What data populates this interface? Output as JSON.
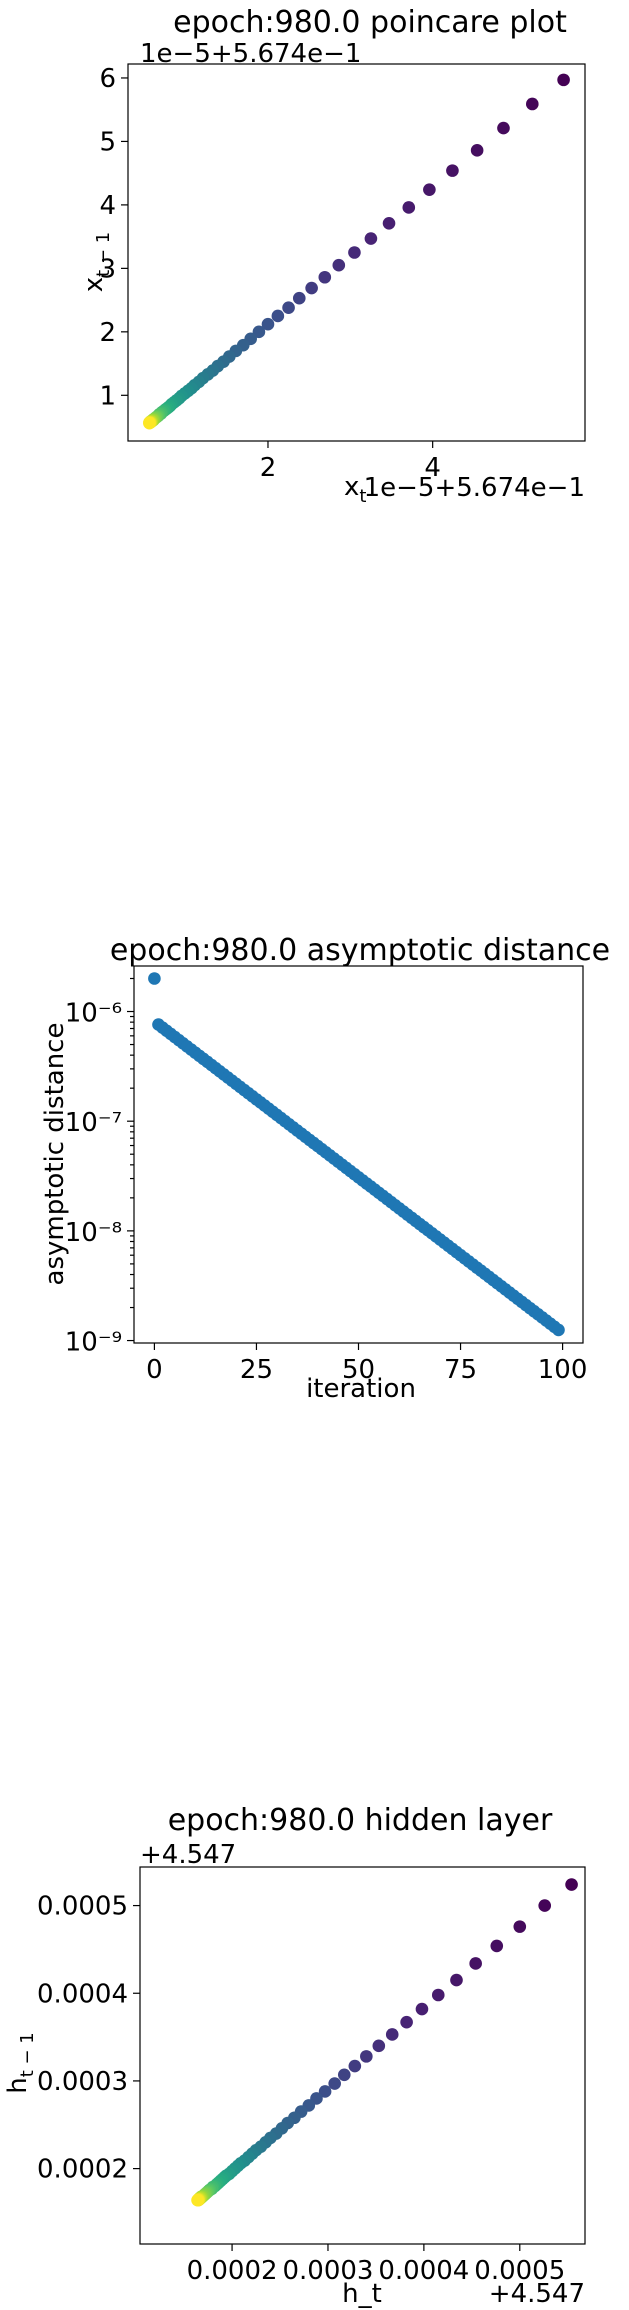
{
  "chart_data": [
    {
      "type": "scatter",
      "title": "epoch:980.0 poincare plot",
      "xlabel": "x_t",
      "ylabel": "x_{t-1}",
      "offset_x": "1e−5+5.674e−1",
      "offset_y": "1e−5+5.674e−1",
      "x_ticks": [
        "2",
        "4"
      ],
      "y_ticks": [
        "1",
        "2",
        "3",
        "4",
        "5",
        "6"
      ],
      "xlim": [
        0.3,
        5.85
      ],
      "ylim": [
        0.28,
        6.22
      ],
      "colormap": "viridis",
      "color_order": "first point dark purple, last point yellow",
      "points": {
        "x": [
          5.59,
          5.21,
          4.86,
          4.54,
          4.24,
          3.96,
          3.71,
          3.47,
          3.25,
          3.05,
          2.86,
          2.69,
          2.53,
          2.38,
          2.25,
          2.12,
          2.0,
          1.89,
          1.79,
          1.7,
          1.61,
          1.53,
          1.46,
          1.39,
          1.33,
          1.27,
          1.21,
          1.16,
          1.11,
          1.07,
          1.03,
          0.99,
          0.95,
          0.92,
          0.89,
          0.86,
          0.83,
          0.81,
          0.79,
          0.77,
          0.75,
          0.73,
          0.71,
          0.7,
          0.68,
          0.67,
          0.66,
          0.65,
          0.64,
          0.63,
          0.62,
          0.61,
          0.61,
          0.6,
          0.59,
          0.59,
          0.58,
          0.58,
          0.57,
          0.57,
          0.57,
          0.56,
          0.56
        ],
        "y": [
          5.97,
          5.59,
          5.21,
          4.86,
          4.54,
          4.24,
          3.96,
          3.71,
          3.47,
          3.25,
          3.05,
          2.86,
          2.69,
          2.53,
          2.38,
          2.25,
          2.12,
          2.0,
          1.89,
          1.79,
          1.7,
          1.61,
          1.53,
          1.46,
          1.39,
          1.33,
          1.27,
          1.21,
          1.16,
          1.11,
          1.07,
          1.03,
          0.99,
          0.95,
          0.92,
          0.89,
          0.86,
          0.83,
          0.81,
          0.79,
          0.77,
          0.75,
          0.73,
          0.71,
          0.7,
          0.68,
          0.67,
          0.66,
          0.65,
          0.64,
          0.63,
          0.62,
          0.61,
          0.61,
          0.6,
          0.59,
          0.59,
          0.58,
          0.58,
          0.57,
          0.57,
          0.57,
          0.56
        ]
      }
    },
    {
      "type": "scatter",
      "title": "epoch:980.0 asymptotic distance",
      "xlabel": "iteration",
      "ylabel": "asymptotic distance",
      "x_ticks": [
        "0",
        "25",
        "50",
        "75",
        "100"
      ],
      "y_ticks": [
        "10⁻⁶",
        "10⁻⁷",
        "10⁻⁸",
        "10⁻⁹"
      ],
      "y_scale": "log",
      "xlim": [
        -5,
        105
      ],
      "ylim": [
        9.5e-10,
        2.6e-06
      ],
      "color": "#1f77b4",
      "points": {
        "x_start": 0,
        "x_end": 99,
        "first_value": 2e-06,
        "second_value": 7.6e-07,
        "last_value": 1.25e-09
      }
    },
    {
      "type": "scatter",
      "title": "epoch:980.0 hidden layer",
      "xlabel": "h_t",
      "ylabel": "h_{t-1}",
      "offset_x": "+4.547",
      "offset_y": "+4.547",
      "x_ticks": [
        "0.0002",
        "0.0003",
        "0.0004",
        "0.0005"
      ],
      "y_ticks": [
        "0.0002",
        "0.0003",
        "0.0004",
        "0.0005"
      ],
      "xlim": [
        0.000104,
        0.000568
      ],
      "ylim": [
        0.000114,
        0.000544
      ],
      "colormap": "viridis",
      "color_order": "first point dark purple, last point yellow",
      "points": {
        "x": [
          0.000554,
          0.000526,
          0.0005,
          0.000476,
          0.000454,
          0.000434,
          0.000415,
          0.000398,
          0.000382,
          0.000367,
          0.000353,
          0.00034,
          0.000328,
          0.000317,
          0.000307,
          0.000297,
          0.000288,
          0.00028,
          0.000272,
          0.000265,
          0.000258,
          0.000252,
          0.000246,
          0.00024,
          0.000235,
          0.00023,
          0.000225,
          0.000221,
          0.000217,
          0.000213,
          0.000209,
          0.000206,
          0.000203,
          0.0002,
          0.000197,
          0.000194,
          0.000192,
          0.00019,
          0.000188,
          0.000186,
          0.000184,
          0.000182,
          0.00018,
          0.000179,
          0.000177,
          0.000176,
          0.000175,
          0.000174,
          0.000173,
          0.000172,
          0.000171,
          0.00017,
          0.000169,
          0.000168,
          0.000168,
          0.000167,
          0.000167,
          0.000166,
          0.000166,
          0.000165,
          0.000165,
          0.000165,
          0.000164
        ],
        "y": [
          0.000524,
          0.0005,
          0.000476,
          0.000454,
          0.000434,
          0.000415,
          0.000398,
          0.000382,
          0.000367,
          0.000353,
          0.00034,
          0.000328,
          0.000317,
          0.000307,
          0.000297,
          0.000288,
          0.00028,
          0.000272,
          0.000265,
          0.000258,
          0.000252,
          0.000246,
          0.00024,
          0.000235,
          0.00023,
          0.000225,
          0.000221,
          0.000217,
          0.000213,
          0.000209,
          0.000206,
          0.000203,
          0.0002,
          0.000197,
          0.000194,
          0.000192,
          0.00019,
          0.000188,
          0.000186,
          0.000184,
          0.000182,
          0.00018,
          0.000179,
          0.000177,
          0.000176,
          0.000175,
          0.000174,
          0.000173,
          0.000172,
          0.000171,
          0.00017,
          0.000169,
          0.000168,
          0.000168,
          0.000167,
          0.000167,
          0.000166,
          0.000166,
          0.000165,
          0.000165,
          0.000165,
          0.000164,
          0.000164
        ]
      }
    }
  ]
}
